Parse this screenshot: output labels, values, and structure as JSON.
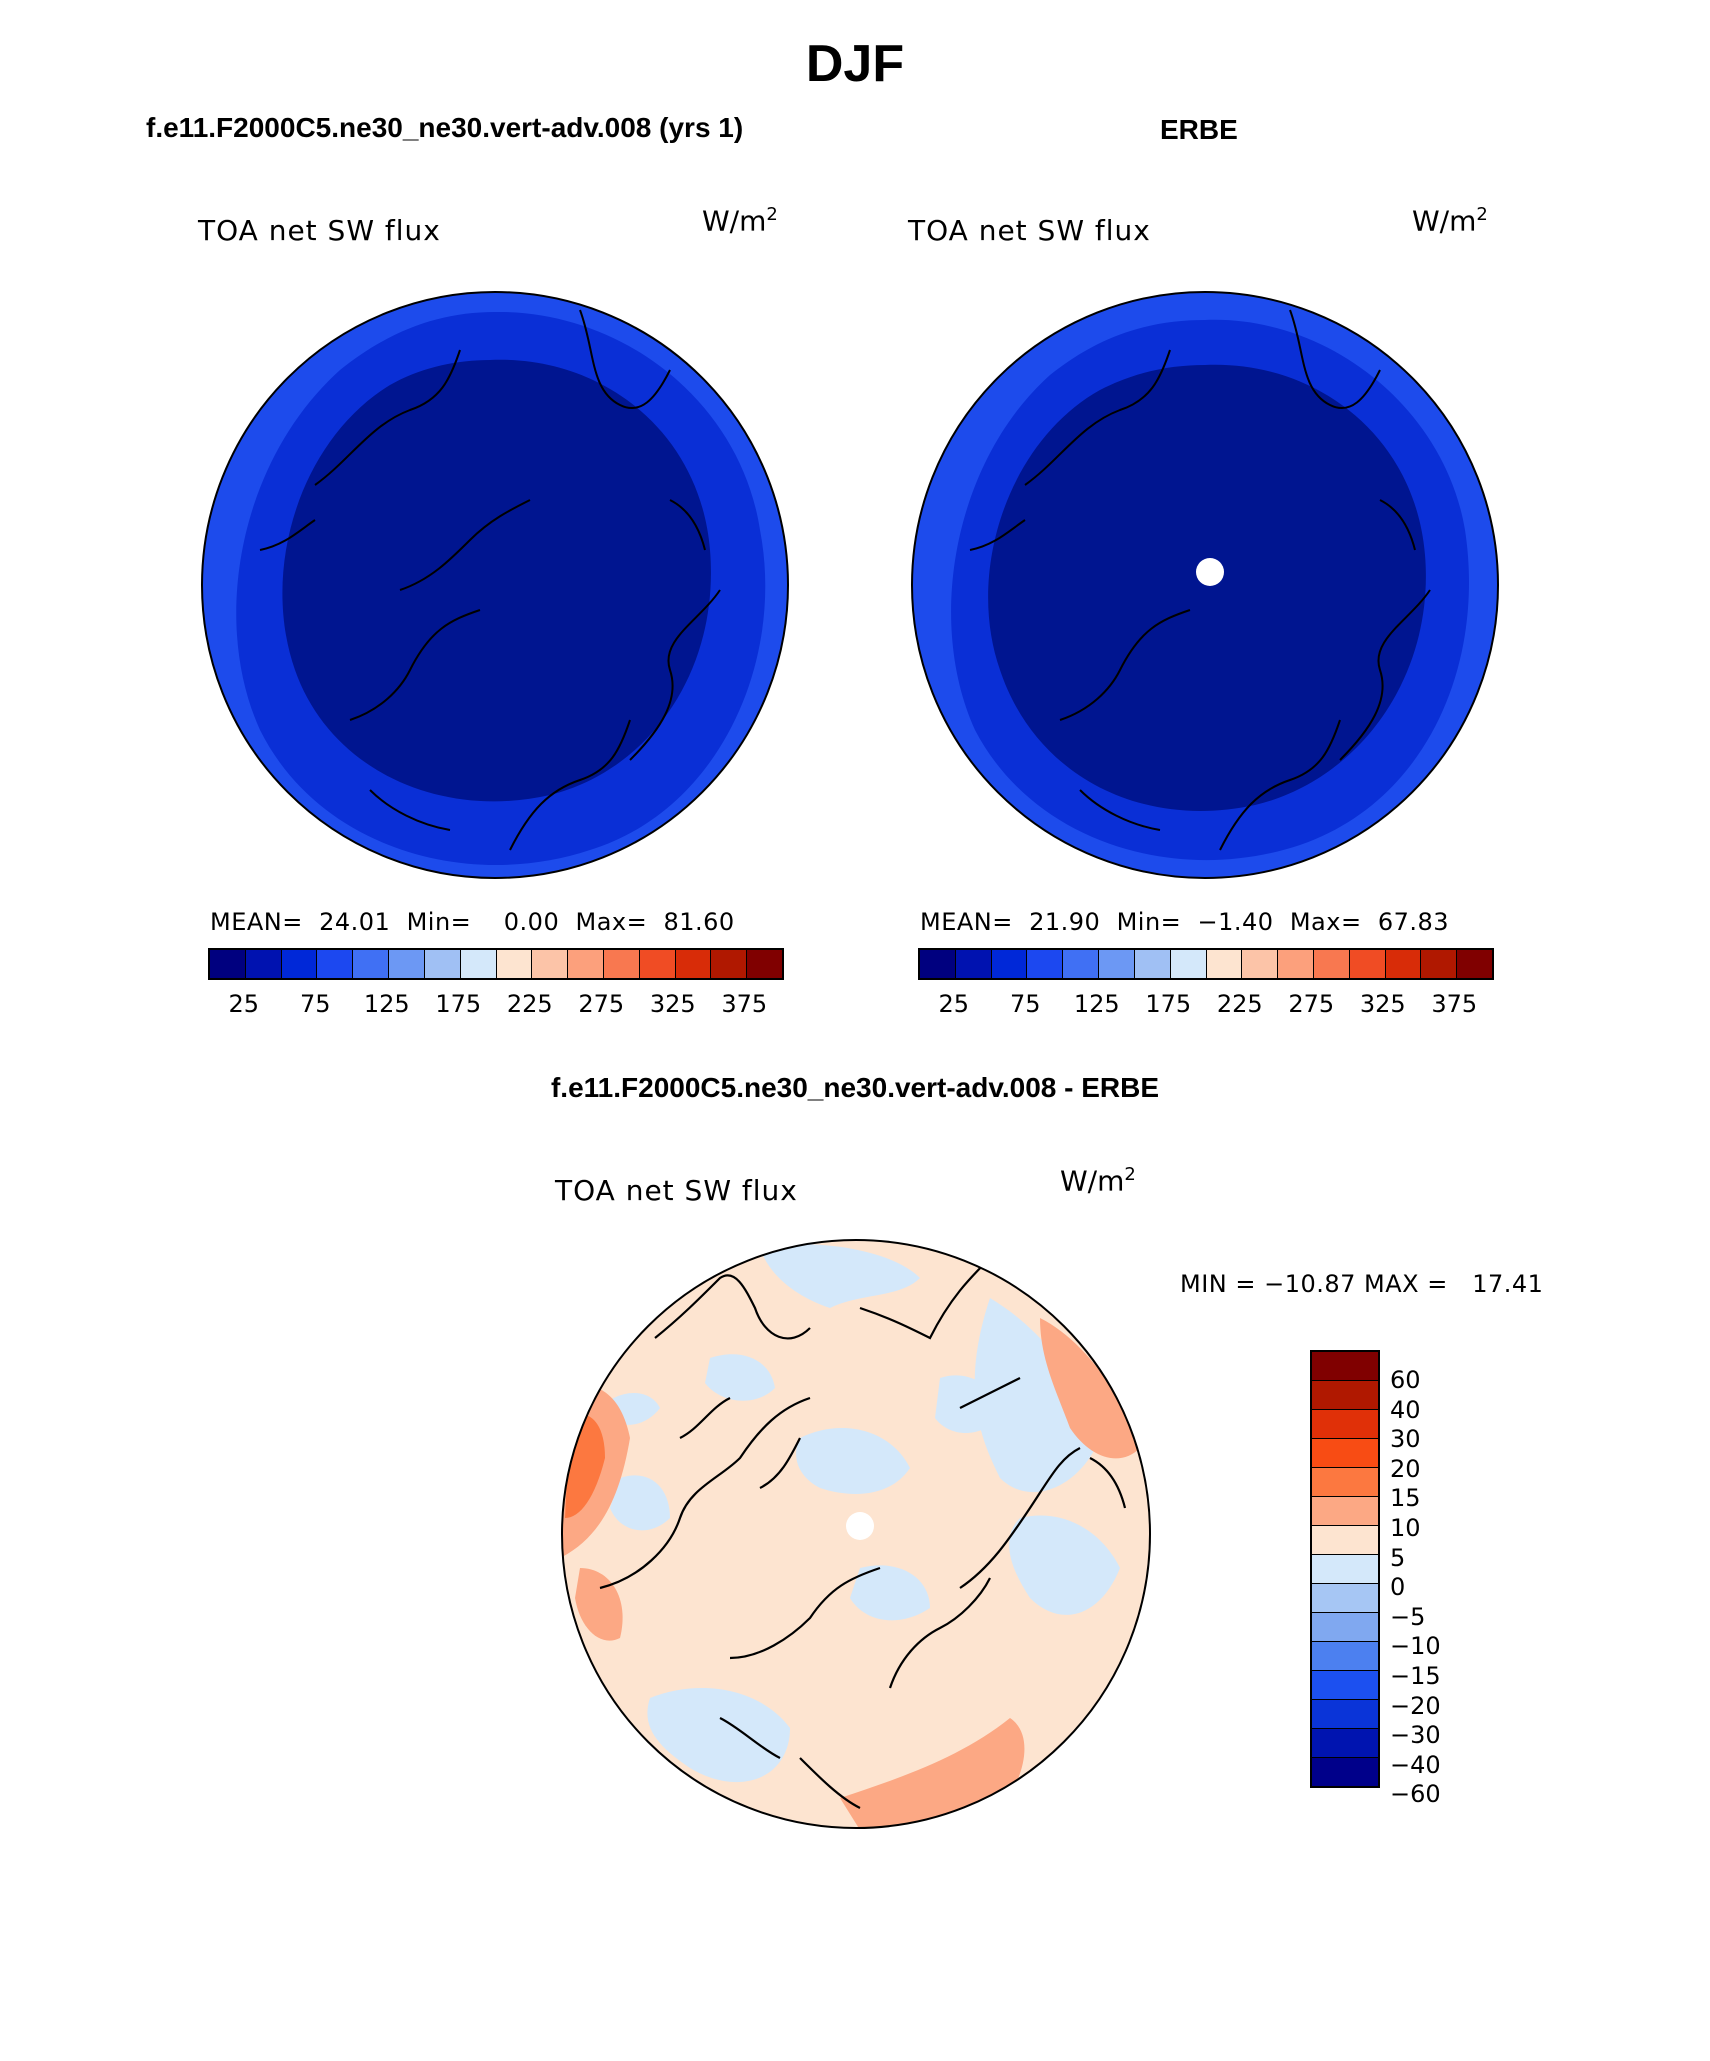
{
  "main_title": "DJF",
  "panels": [
    {
      "case_title": "f.e11.F2000C5.ne30_ne30.vert-adv.008 (yrs 1)",
      "variable": "TOA net SW flux",
      "unit_base": "W/m",
      "unit_exp": "2",
      "stats": "MEAN=  24.01  Min=    0.00  Max=  81.60",
      "fill_colors": [
        "#001590",
        "#0a2fd6",
        "#1d4bec"
      ]
    },
    {
      "case_title": "ERBE",
      "variable": "TOA net SW flux",
      "unit_base": "W/m",
      "unit_exp": "2",
      "stats": "MEAN=  21.90  Min=  −1.40  Max=  67.83",
      "fill_colors": [
        "#001590",
        "#0a2fd6",
        "#1d4bec"
      ]
    }
  ],
  "abs_colorbar": {
    "colors": [
      "#00007f",
      "#0012b0",
      "#0028d8",
      "#1c48f0",
      "#4070f4",
      "#6c98f4",
      "#a0c0f4",
      "#d4e8fa",
      "#fde4d0",
      "#fcc4a8",
      "#fca07c",
      "#f87850",
      "#f04c24",
      "#d82c08",
      "#b01800",
      "#800000"
    ],
    "ticks": [
      "25",
      "75",
      "125",
      "175",
      "225",
      "275",
      "325",
      "375"
    ]
  },
  "diff_panel": {
    "case_title": "f.e11.F2000C5.ne30_ne30.vert-adv.008 - ERBE",
    "variable": "TOA net SW flux",
    "unit_base": "W/m",
    "unit_exp": "2",
    "minmax": "MIN = −10.87 MAX =   17.41",
    "colors": [
      "#800000",
      "#b01800",
      "#e03008",
      "#f84c14",
      "#fc7840",
      "#fca884",
      "#fde4d0",
      "#d4e8fa",
      "#a6c6f4",
      "#80a8f0",
      "#4c80f0",
      "#1c50f0",
      "#0a34d8",
      "#0014b0",
      "#00008a"
    ],
    "ticks": [
      "60",
      "40",
      "30",
      "20",
      "15",
      "10",
      "5",
      "0",
      "−5",
      "−10",
      "−15",
      "−20",
      "−30",
      "−40",
      "−60"
    ]
  }
}
